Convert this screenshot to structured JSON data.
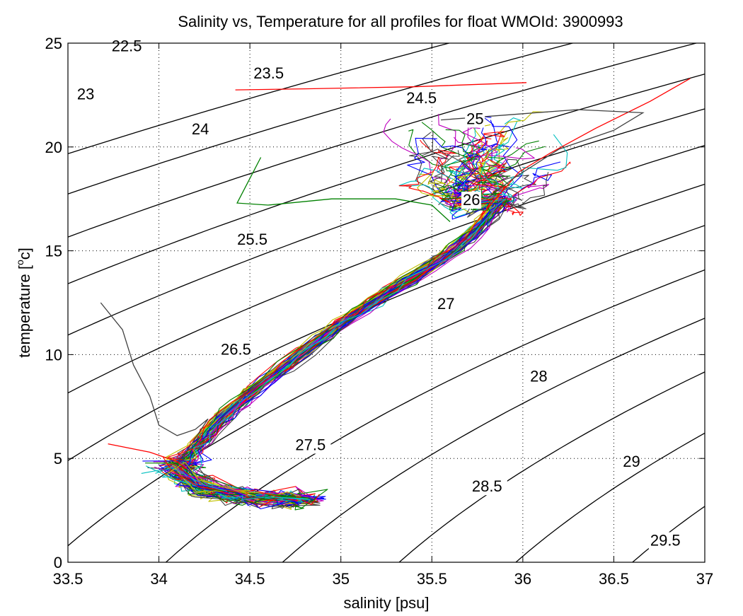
{
  "chart_data": {
    "type": "line",
    "title": "Salinity vs, Temperature for all profiles for float WMOId: 3900993",
    "xlabel": "salinity [psu]",
    "ylabel_main": "temperature [",
    "ylabel_sup": "o",
    "ylabel_end": "c]",
    "xlim": [
      33.5,
      37
    ],
    "ylim": [
      0,
      25
    ],
    "xticks": [
      33.5,
      34,
      34.5,
      35,
      35.5,
      36,
      36.5,
      37
    ],
    "xtick_labels": [
      "33.5",
      "34",
      "34.5",
      "35",
      "35.5",
      "36",
      "36.5",
      "37"
    ],
    "yticks": [
      0,
      5,
      10,
      15,
      20,
      25
    ],
    "ytick_labels": [
      "0",
      "5",
      "10",
      "15",
      "20",
      "25"
    ],
    "grid": true,
    "density_contours": {
      "levels": [
        22.5,
        23,
        23.5,
        24,
        24.5,
        25,
        25.5,
        26,
        26.5,
        27,
        27.5,
        28,
        28.5,
        29,
        29.5
      ],
      "labels": [
        {
          "text": "22.5",
          "s": 33.74,
          "t": 24.6
        },
        {
          "text": "23",
          "s": 33.55,
          "t": 22.3
        },
        {
          "text": "23.5",
          "s": 34.52,
          "t": 23.3
        },
        {
          "text": "24",
          "s": 34.18,
          "t": 20.6
        },
        {
          "text": "24.5",
          "s": 35.36,
          "t": 22.1
        },
        {
          "text": "25",
          "s": 35.69,
          "t": 21.1
        },
        {
          "text": "25.5",
          "s": 34.43,
          "t": 15.3
        },
        {
          "text": "26",
          "s": 35.67,
          "t": 17.2
        },
        {
          "text": "26.5",
          "s": 34.34,
          "t": 10.0
        },
        {
          "text": "27",
          "s": 35.53,
          "t": 12.2
        },
        {
          "text": "27.5",
          "s": 34.75,
          "t": 5.4
        },
        {
          "text": "28",
          "s": 36.04,
          "t": 8.7
        },
        {
          "text": "28.5",
          "s": 35.72,
          "t": 3.4
        },
        {
          "text": "29",
          "s": 36.55,
          "t": 4.6
        },
        {
          "text": "29.5",
          "s": 36.7,
          "t": 0.8
        }
      ]
    },
    "profile_colors": [
      "#0000ff",
      "#008000",
      "#ff0000",
      "#00bfbf",
      "#bf00bf",
      "#bfbf00",
      "#404040"
    ],
    "profile_count": 60,
    "backbone": [
      [
        34.9,
        3.0
      ],
      [
        34.7,
        3.05
      ],
      [
        34.45,
        3.15
      ],
      [
        34.25,
        3.5
      ],
      [
        34.12,
        4.2
      ],
      [
        34.15,
        5.0
      ],
      [
        34.25,
        6.0
      ],
      [
        34.35,
        7.0
      ],
      [
        34.52,
        8.3
      ],
      [
        34.75,
        9.8
      ],
      [
        35.0,
        11.5
      ],
      [
        35.22,
        12.8
      ],
      [
        35.45,
        14.0
      ],
      [
        35.65,
        15.2
      ],
      [
        35.8,
        16.5
      ],
      [
        35.88,
        17.5
      ]
    ],
    "special_profiles": [
      {
        "color": "#ff0000",
        "points": [
          [
            34.42,
            22.75
          ],
          [
            34.8,
            22.8
          ],
          [
            35.4,
            22.9
          ],
          [
            36.02,
            23.1
          ]
        ]
      },
      {
        "color": "#ff0000",
        "points": [
          [
            36.92,
            23.3
          ],
          [
            36.7,
            22.2
          ],
          [
            36.4,
            20.9
          ],
          [
            36.15,
            19.7
          ],
          [
            35.98,
            18.8
          ],
          [
            35.88,
            17.8
          ],
          [
            35.8,
            17.0
          ]
        ]
      },
      {
        "color": "#404040",
        "points": [
          [
            35.55,
            21.3
          ],
          [
            36.0,
            21.6
          ],
          [
            36.3,
            21.8
          ],
          [
            36.66,
            21.65
          ],
          [
            36.5,
            20.8
          ],
          [
            36.2,
            19.9
          ],
          [
            35.95,
            18.5
          ],
          [
            35.8,
            17.5
          ]
        ]
      },
      {
        "color": "#008000",
        "points": [
          [
            34.56,
            19.5
          ],
          [
            34.43,
            17.3
          ],
          [
            34.6,
            17.2
          ],
          [
            34.95,
            17.5
          ],
          [
            35.3,
            17.5
          ],
          [
            35.5,
            17.2
          ],
          [
            35.6,
            16.4
          ]
        ]
      },
      {
        "color": "#404040",
        "points": [
          [
            33.68,
            12.5
          ],
          [
            33.8,
            11.2
          ],
          [
            33.86,
            9.5
          ],
          [
            33.95,
            8.0
          ],
          [
            34.0,
            6.6
          ],
          [
            34.1,
            6.1
          ],
          [
            34.2,
            6.4
          ],
          [
            34.27,
            6.9
          ],
          [
            34.15,
            5.3
          ],
          [
            34.1,
            4.8
          ]
        ]
      },
      {
        "color": "#ff0000",
        "points": [
          [
            33.72,
            5.7
          ],
          [
            33.95,
            5.3
          ],
          [
            34.1,
            4.85
          ],
          [
            34.15,
            4.5
          ]
        ]
      }
    ]
  }
}
